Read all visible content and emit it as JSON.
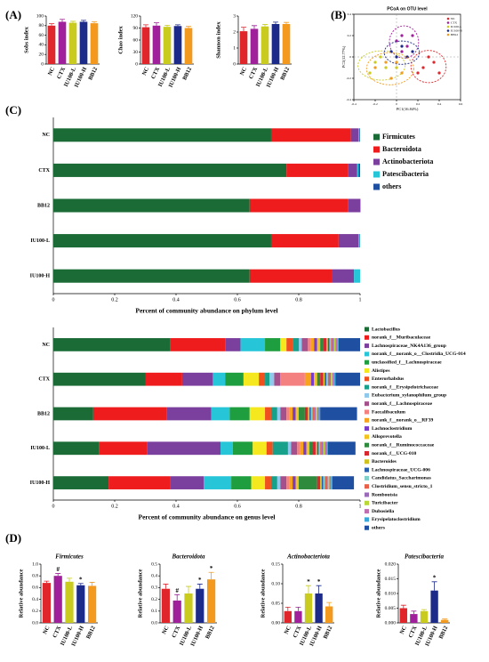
{
  "panels": [
    "(A)",
    "(B)",
    "(C)",
    "(D)"
  ],
  "chart_data": [
    {
      "type": "bar",
      "ylabel": "Sobs index",
      "categories": [
        "NC",
        "CTX",
        "IU100-L",
        "IU100-H",
        "BB12"
      ],
      "values": [
        80,
        88,
        86,
        88,
        85
      ],
      "errors": [
        4,
        5,
        3,
        3,
        3
      ],
      "colors": [
        "#e0252b",
        "#a01f9a",
        "#c9cc1e",
        "#1c2a8a",
        "#f39a1e"
      ],
      "ylim": [
        0,
        100
      ],
      "yticks": [
        0,
        20,
        40,
        60,
        80,
        100
      ]
    },
    {
      "type": "bar",
      "ylabel": "Chao index",
      "categories": [
        "NC",
        "CTX",
        "IU100-L",
        "IU100-H",
        "BB12"
      ],
      "values": [
        92,
        96,
        93,
        95,
        90
      ],
      "errors": [
        6,
        7,
        4,
        3,
        4
      ],
      "colors": [
        "#e0252b",
        "#a01f9a",
        "#c9cc1e",
        "#1c2a8a",
        "#f39a1e"
      ],
      "ylim": [
        0,
        120
      ],
      "yticks": [
        0,
        30,
        60,
        90,
        120
      ]
    },
    {
      "type": "bar",
      "ylabel": "Shannon index",
      "categories": [
        "NC",
        "CTX",
        "IU100-L",
        "IU100-H",
        "BB12"
      ],
      "values": [
        2.05,
        2.2,
        2.35,
        2.5,
        2.5
      ],
      "errors": [
        0.25,
        0.2,
        0.12,
        0.12,
        0.1
      ],
      "colors": [
        "#e0252b",
        "#a01f9a",
        "#c9cc1e",
        "#1c2a8a",
        "#f39a1e"
      ],
      "ylim": [
        0,
        3
      ],
      "yticks": [
        0,
        1,
        2,
        3
      ]
    },
    {
      "type": "scatter",
      "title": "PCoA on OTU level",
      "xlabel": "PC1(16.84%)",
      "ylabel": "PC2(12.77%)",
      "xlim": [
        -0.4,
        0.6
      ],
      "xticks": [
        -0.4,
        -0.2,
        0,
        0.2,
        0.4,
        0.6
      ],
      "ylim": [
        -0.4,
        0.4
      ],
      "yticks": [
        -0.4,
        -0.2,
        0,
        0.2,
        0.4
      ],
      "series": [
        {
          "name": "NC",
          "color": "#e0252b",
          "x": [
            0.25,
            0.35,
            0.4,
            0.3,
            0.2
          ],
          "y": [
            -0.1,
            -0.05,
            -0.15,
            0.0,
            -0.15
          ]
        },
        {
          "name": "CTX",
          "color": "#a01f9a",
          "x": [
            0.05,
            0.1,
            0.0,
            0.15,
            0.05
          ],
          "y": [
            0.2,
            0.1,
            0.15,
            0.2,
            0.05
          ]
        },
        {
          "name": "IU100-L",
          "color": "#c9cc1e",
          "x": [
            -0.2,
            -0.1,
            -0.25,
            0.0,
            -0.15
          ],
          "y": [
            -0.05,
            -0.1,
            -0.15,
            -0.1,
            0.0
          ]
        },
        {
          "name": "IU100-H",
          "color": "#1c2a8a",
          "x": [
            0.05,
            0.1,
            -0.05,
            0.15,
            0.0
          ],
          "y": [
            0.1,
            0.0,
            0.05,
            0.05,
            0.0
          ]
        },
        {
          "name": "BB12",
          "color": "#f39a1e",
          "x": [
            -0.1,
            0.05,
            -0.2,
            0.0,
            -0.05
          ],
          "y": [
            -0.05,
            -0.15,
            -0.1,
            -0.05,
            -0.2
          ]
        }
      ]
    },
    {
      "type": "hstack",
      "xlabel": "Percent of community abundance on phylum level",
      "categories": [
        "NC",
        "CTX",
        "BB12",
        "IU100-L",
        "IU100-H"
      ],
      "xlim": [
        0,
        1
      ],
      "xticks": [
        0,
        0.2,
        0.4,
        0.6,
        0.8,
        1
      ],
      "series": [
        {
          "name": "Firmicutes",
          "color": "#1a6b35",
          "values": [
            0.71,
            0.76,
            0.64,
            0.71,
            0.64
          ]
        },
        {
          "name": "Bacteroidota",
          "color": "#ee1c1c",
          "values": [
            0.26,
            0.2,
            0.32,
            0.22,
            0.27
          ]
        },
        {
          "name": "Actinobacteriota",
          "color": "#7b3f9e",
          "values": [
            0.025,
            0.03,
            0.04,
            0.065,
            0.07
          ]
        },
        {
          "name": "Patescibacteria",
          "color": "#26c5d8",
          "values": [
            0.003,
            0.005,
            0.002,
            0.004,
            0.02
          ]
        },
        {
          "name": "others",
          "color": "#1f4fa0",
          "values": [
            0.002,
            0.005,
            0.0,
            0.001,
            0.0
          ]
        }
      ]
    },
    {
      "type": "hstack",
      "xlabel": "Percent of community abundance on genus level",
      "categories": [
        "NC",
        "CTX",
        "BB12",
        "IU100-L",
        "IU100-H"
      ],
      "xlim": [
        0,
        1
      ],
      "xticks": [
        0,
        0.2,
        0.4,
        0.6,
        0.8,
        1
      ],
      "series": [
        {
          "name": "Lactobacillus",
          "color": "#1a6b35",
          "values": [
            0.38,
            0.3,
            0.13,
            0.15,
            0.18
          ]
        },
        {
          "name": "norank_f__Muribaculaceae",
          "color": "#ee1c1c",
          "values": [
            0.18,
            0.12,
            0.24,
            0.155,
            0.2
          ]
        },
        {
          "name": "Lachnospiraceae_NK4A136_group",
          "color": "#7b3f9e",
          "values": [
            0.05,
            0.1,
            0.145,
            0.24,
            0.11
          ]
        },
        {
          "name": "norank_f__norank_o__Clostridia_UCG-014",
          "color": "#26c5d8",
          "values": [
            0.08,
            0.04,
            0.06,
            0.04,
            0.09
          ]
        },
        {
          "name": "unclassified_f__Lachnospiraceae",
          "color": "#1e9e3e",
          "values": [
            0.05,
            0.06,
            0.065,
            0.065,
            0.065
          ]
        },
        {
          "name": "Alistipes",
          "color": "#f5e81e",
          "values": [
            0.02,
            0.05,
            0.05,
            0.045,
            0.045
          ]
        },
        {
          "name": "Enterorhabdus",
          "color": "#f0501e",
          "values": [
            0.02,
            0.02,
            0.02,
            0.02,
            0.02
          ]
        },
        {
          "name": "norank_f__Erysipelotrichaceae",
          "color": "#17a08a",
          "values": [
            0.02,
            0.015,
            0.02,
            0.05,
            0.02
          ]
        },
        {
          "name": "Eubacterium_xylanophilum_group",
          "color": "#8fc8ea",
          "values": [
            0.01,
            0.015,
            0.01,
            0.01,
            0.01
          ]
        },
        {
          "name": "norank_f__Lachnospiraceae",
          "color": "#a3508c",
          "values": [
            0.02,
            0.02,
            0.02,
            0.02,
            0.02
          ]
        },
        {
          "name": "Faecalibaculum",
          "color": "#f58080",
          "values": [
            0.01,
            0.08,
            0.01,
            0.01,
            0.01
          ]
        },
        {
          "name": "norank_f__norank_o__RF39",
          "color": "#f6a21e",
          "values": [
            0.01,
            0.02,
            0.01,
            0.01,
            0.01
          ]
        },
        {
          "name": "Lachnoclostridium",
          "color": "#7a3cc8",
          "values": [
            0.01,
            0.01,
            0.01,
            0.01,
            0.01
          ]
        },
        {
          "name": "Alloprevotella",
          "color": "#f3c21e",
          "values": [
            0.01,
            0.01,
            0.01,
            0.01,
            0.01
          ]
        },
        {
          "name": "norank_f__Ruminococcaceae",
          "color": "#2e8b3e",
          "values": [
            0.01,
            0.01,
            0.02,
            0.01,
            0.06
          ]
        },
        {
          "name": "norank_f__UCG-010",
          "color": "#d8282f",
          "values": [
            0.01,
            0.01,
            0.01,
            0.01,
            0.01
          ]
        },
        {
          "name": "Bacteroides",
          "color": "#d0c020",
          "values": [
            0.005,
            0.005,
            0.005,
            0.005,
            0.005
          ]
        },
        {
          "name": "Lachnospiraceae_UCG-006",
          "color": "#2a5fb0",
          "values": [
            0.005,
            0.005,
            0.005,
            0.005,
            0.005
          ]
        },
        {
          "name": "Candidatus_Saccharimonas",
          "color": "#7fd0c8",
          "values": [
            0.005,
            0.005,
            0.005,
            0.005,
            0.005
          ]
        },
        {
          "name": "Clostridium_sensu_stricto_1",
          "color": "#e8604a",
          "values": [
            0.005,
            0.005,
            0.005,
            0.005,
            0.005
          ]
        },
        {
          "name": "Romboutsia",
          "color": "#9b6ab8",
          "values": [
            0.005,
            0.005,
            0.005,
            0.005,
            0.005
          ]
        },
        {
          "name": "Turicibacter",
          "color": "#b8d838",
          "values": [
            0.005,
            0.005,
            0.005,
            0.005,
            0.005
          ]
        },
        {
          "name": "Dubosiella",
          "color": "#c070b0",
          "values": [
            0.005,
            0.005,
            0.005,
            0.005,
            0.005
          ]
        },
        {
          "name": "Erysipelatoclostridium",
          "color": "#3aa8d8",
          "values": [
            0.005,
            0.005,
            0.005,
            0.005,
            0.005
          ]
        },
        {
          "name": "others",
          "color": "#1f4fa0",
          "values": [
            0.07,
            0.08,
            0.12,
            0.09,
            0.07
          ]
        }
      ]
    },
    {
      "type": "bar",
      "title": "Firmicutes",
      "ylabel": "Relative abundance",
      "categories": [
        "NC",
        "CTX",
        "IU100-L",
        "IU100-H",
        "BB12"
      ],
      "values": [
        0.68,
        0.8,
        0.7,
        0.64,
        0.63
      ],
      "errors": [
        0.03,
        0.04,
        0.06,
        0.03,
        0.06
      ],
      "annotations": [
        null,
        "#",
        null,
        "*",
        null
      ],
      "colors": [
        "#e0252b",
        "#a01f9a",
        "#c9cc1e",
        "#1c2a8a",
        "#f39a1e"
      ],
      "ylim": [
        0,
        1
      ],
      "yticks": [
        {
          "value": 0,
          "label": "0.0"
        },
        0.2,
        0.4,
        0.6,
        0.8,
        {
          "value": 1,
          "label": "1.0"
        }
      ]
    },
    {
      "type": "bar",
      "title": "Bacteroidota",
      "ylabel": "Relative abundance",
      "categories": [
        "NC",
        "CTX",
        "IU100-L",
        "IU100-H",
        "BB12"
      ],
      "values": [
        0.29,
        0.19,
        0.25,
        0.29,
        0.37
      ],
      "errors": [
        0.04,
        0.05,
        0.06,
        0.04,
        0.06
      ],
      "annotations": [
        null,
        "#",
        null,
        "*",
        "*"
      ],
      "colors": [
        "#e0252b",
        "#a01f9a",
        "#c9cc1e",
        "#1c2a8a",
        "#f39a1e"
      ],
      "ylim": [
        0,
        0.5
      ],
      "yticks": [
        {
          "value": 0,
          "label": "0.0"
        },
        0.1,
        0.2,
        0.3,
        0.4,
        0.5
      ]
    },
    {
      "type": "bar",
      "title": "Actinobacteriota",
      "ylabel": "Relative abundance",
      "categories": [
        "NC",
        "CTX",
        "IU100-L",
        "IU100-H",
        "BB12"
      ],
      "values": [
        0.03,
        0.03,
        0.075,
        0.075,
        0.042
      ],
      "errors": [
        0.01,
        0.01,
        0.02,
        0.02,
        0.01
      ],
      "annotations": [
        null,
        null,
        "*",
        "*",
        null
      ],
      "colors": [
        "#e0252b",
        "#a01f9a",
        "#c9cc1e",
        "#1c2a8a",
        "#f39a1e"
      ],
      "ylim": [
        0,
        0.15
      ],
      "yticks": [
        {
          "value": 0,
          "label": "0.00"
        },
        0.05,
        {
          "value": 0.1,
          "label": "0.10"
        },
        0.15
      ]
    },
    {
      "type": "bar",
      "title": "Patescibacteria",
      "ylabel": "Relative abundance",
      "categories": [
        "NC",
        "CTX",
        "IU100-L",
        "IU100-H",
        "BB12"
      ],
      "values": [
        0.005,
        0.003,
        0.004,
        0.011,
        0.001
      ],
      "errors": [
        0.001,
        0.001,
        0.0005,
        0.003,
        0.0003
      ],
      "annotations": [
        null,
        null,
        null,
        "*",
        null
      ],
      "colors": [
        "#e0252b",
        "#a01f9a",
        "#c9cc1e",
        "#1c2a8a",
        "#f39a1e"
      ],
      "ylim": [
        0,
        0.02
      ],
      "yticks": [
        {
          "value": 0,
          "label": "0.000"
        },
        {
          "value": 0.005,
          "label": "0.005"
        },
        {
          "value": 0.01,
          "label": "0.010"
        },
        {
          "value": 0.015,
          "label": "0.015"
        },
        {
          "value": 0.02,
          "label": "0.020"
        }
      ]
    }
  ]
}
